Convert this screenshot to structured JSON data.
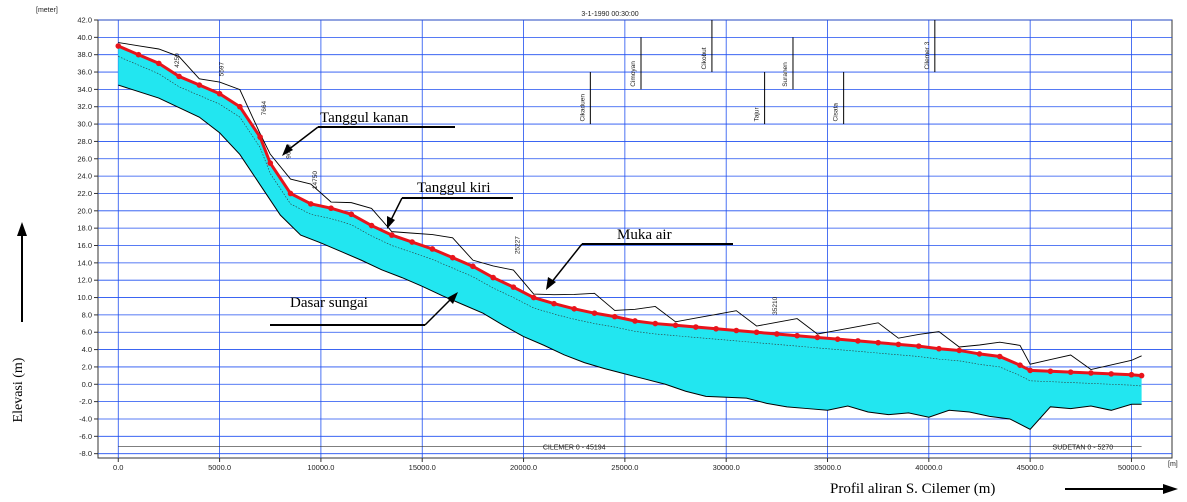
{
  "chart_data": {
    "type": "area",
    "title": "3-1-1990 00:30:00",
    "y_unit": "[meter]",
    "x_unit": "[m]",
    "ylabel": "Elevasi (m)",
    "xlabel": "Profil aliran S. Cilemer  (m)",
    "xlim": [
      -1000,
      52000
    ],
    "ylim": [
      -8.5,
      42.0
    ],
    "xticks": [
      0,
      5000,
      10000,
      15000,
      20000,
      25000,
      30000,
      35000,
      40000,
      45000,
      50000
    ],
    "xtick_labels": [
      "0.0",
      "5000.0",
      "10000.0",
      "15000.0",
      "20000.0",
      "25000.0",
      "30000.0",
      "35000.0",
      "40000.0",
      "45000.0",
      "50000.0"
    ],
    "yticks": [
      -8,
      -6,
      -4,
      -2,
      0,
      2,
      4,
      6,
      8,
      10,
      12,
      14,
      16,
      18,
      20,
      22,
      24,
      26,
      28,
      30,
      32,
      34,
      36,
      38,
      40,
      42
    ],
    "ytick_labels": [
      "-8.0",
      "-6.0",
      "-4.0",
      "-2.0",
      "0.0",
      "2.0",
      "4.0",
      "6.0",
      "8.0",
      "10.0",
      "12.0",
      "14.0",
      "16.0",
      "18.0",
      "20.0",
      "22.0",
      "24.0",
      "26.0",
      "28.0",
      "30.0",
      "32.0",
      "34.0",
      "36.0",
      "38.0",
      "40.0",
      "42.0"
    ],
    "grid": true,
    "fill_color": "#22e6f0",
    "water_color": "#e8141b",
    "series": [
      {
        "name": "Muka air",
        "x": [
          0,
          1000,
          2000,
          3000,
          4000,
          5000,
          6000,
          7000,
          7500,
          8500,
          9500,
          10500,
          11500,
          12500,
          13500,
          14500,
          15500,
          16500,
          17500,
          18500,
          19500,
          20500,
          21500,
          22500,
          23500,
          24500,
          25500,
          26500,
          27500,
          28500,
          29500,
          30500,
          31500,
          32500,
          33500,
          34500,
          35500,
          36500,
          37500,
          38500,
          39500,
          40500,
          41500,
          42500,
          43500,
          44500,
          45000,
          46000,
          47000,
          48000,
          49000,
          50000,
          50500
        ],
        "y": [
          39.0,
          38.0,
          37.0,
          35.5,
          34.5,
          33.5,
          32.0,
          28.5,
          25.5,
          22.0,
          20.8,
          20.3,
          19.6,
          18.3,
          17.2,
          16.4,
          15.6,
          14.6,
          13.6,
          12.3,
          11.2,
          10.0,
          9.3,
          8.7,
          8.2,
          7.8,
          7.3,
          7.0,
          6.8,
          6.6,
          6.4,
          6.2,
          6.0,
          5.8,
          5.6,
          5.4,
          5.2,
          5.0,
          4.8,
          4.6,
          4.4,
          4.1,
          3.9,
          3.5,
          3.2,
          2.2,
          1.6,
          1.5,
          1.4,
          1.3,
          1.2,
          1.1,
          1.0
        ]
      },
      {
        "name": "Dasar sungai",
        "x": [
          0,
          2000,
          4000,
          5000,
          6000,
          7000,
          8000,
          9000,
          10000,
          11000,
          12000,
          13000,
          14000,
          15000,
          16000,
          17000,
          18000,
          19000,
          20000,
          21000,
          22000,
          23000,
          24000,
          25000,
          26000,
          27000,
          28000,
          29000,
          30000,
          31000,
          32000,
          33000,
          34000,
          35000,
          36000,
          37000,
          38000,
          39000,
          40000,
          41000,
          42000,
          43000,
          44000,
          45000,
          46000,
          47000,
          48000,
          49000,
          50000,
          50500
        ],
        "y": [
          34.5,
          33.0,
          30.8,
          29.0,
          26.5,
          23.0,
          19.5,
          17.2,
          16.3,
          15.3,
          14.3,
          13.2,
          12.3,
          11.3,
          10.2,
          9.2,
          8.2,
          6.8,
          5.5,
          4.5,
          3.4,
          2.5,
          1.8,
          1.2,
          0.6,
          0.0,
          -0.8,
          -1.4,
          -1.5,
          -1.6,
          -2.2,
          -2.6,
          -2.8,
          -3.0,
          -2.5,
          -3.2,
          -3.5,
          -3.3,
          -3.8,
          -3.0,
          -3.2,
          -3.7,
          -4.0,
          -5.2,
          -2.6,
          -2.8,
          -2.5,
          -3.0,
          -2.3,
          -2.3
        ]
      }
    ],
    "annotations": [
      {
        "text": "Tanggul kanan"
      },
      {
        "text": "Tanggul kiri"
      },
      {
        "text": "Muka air"
      },
      {
        "text": "Dasar sungai"
      }
    ],
    "tributaries": [
      "Cikaduen",
      "Cimoyan",
      "Cikobut",
      "Suranen",
      "Cilemer 3",
      "Tajur",
      "Cisata"
    ],
    "chainage_labels": [
      "4250",
      "5597",
      "7664",
      "9619",
      "14750",
      "25227",
      "35210"
    ],
    "branch_labels": [
      "CILEMER 0 - 45194",
      "SUDETAN 0 - 5270"
    ]
  }
}
